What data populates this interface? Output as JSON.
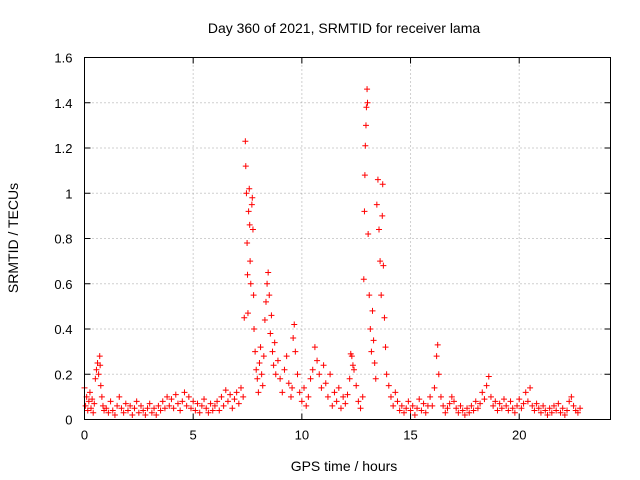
{
  "chart_data": {
    "type": "scatter",
    "title": "Day 360 of 2021, SRMTID for receiver lama",
    "xlabel": "GPS time / hours",
    "ylabel": "SRMTID / TECUs",
    "xlim": [
      0,
      24.2
    ],
    "ylim": [
      0,
      1.6
    ],
    "xticks": [
      0,
      5,
      10,
      15,
      20
    ],
    "xtick_labels": [
      "0",
      "5",
      "10",
      "15",
      "20"
    ],
    "yticks": [
      0,
      0.2,
      0.4,
      0.6,
      0.8,
      1.0,
      1.2,
      1.4,
      1.6
    ],
    "ytick_labels": [
      "0",
      "0.2",
      "0.4",
      "0.6",
      "0.8",
      "1",
      "1.2",
      "1.4",
      "1.6"
    ],
    "grid": true,
    "marker": "+",
    "color": "#ff0000",
    "series": [
      {
        "name": "SRMTID",
        "points": [
          [
            0.0,
            0.14
          ],
          [
            0.05,
            0.06
          ],
          [
            0.1,
            0.1
          ],
          [
            0.15,
            0.04
          ],
          [
            0.2,
            0.08
          ],
          [
            0.25,
            0.12
          ],
          [
            0.3,
            0.05
          ],
          [
            0.35,
            0.09
          ],
          [
            0.4,
            0.03
          ],
          [
            0.45,
            0.07
          ],
          [
            0.5,
            0.18
          ],
          [
            0.55,
            0.22
          ],
          [
            0.6,
            0.25
          ],
          [
            0.65,
            0.2
          ],
          [
            0.7,
            0.28
          ],
          [
            0.72,
            0.24
          ],
          [
            0.75,
            0.15
          ],
          [
            0.8,
            0.1
          ],
          [
            0.85,
            0.06
          ],
          [
            0.9,
            0.04
          ],
          [
            1.0,
            0.05
          ],
          [
            1.1,
            0.03
          ],
          [
            1.2,
            0.08
          ],
          [
            1.3,
            0.04
          ],
          [
            1.4,
            0.02
          ],
          [
            1.5,
            0.06
          ],
          [
            1.6,
            0.1
          ],
          [
            1.7,
            0.05
          ],
          [
            1.8,
            0.03
          ],
          [
            1.9,
            0.07
          ],
          [
            2.0,
            0.04
          ],
          [
            2.1,
            0.06
          ],
          [
            2.2,
            0.02
          ],
          [
            2.3,
            0.05
          ],
          [
            2.4,
            0.08
          ],
          [
            2.5,
            0.03
          ],
          [
            2.6,
            0.06
          ],
          [
            2.7,
            0.04
          ],
          [
            2.8,
            0.02
          ],
          [
            2.9,
            0.05
          ],
          [
            3.0,
            0.07
          ],
          [
            3.1,
            0.03
          ],
          [
            3.2,
            0.05
          ],
          [
            3.3,
            0.02
          ],
          [
            3.4,
            0.06
          ],
          [
            3.5,
            0.04
          ],
          [
            3.6,
            0.08
          ],
          [
            3.7,
            0.05
          ],
          [
            3.8,
            0.1
          ],
          [
            3.9,
            0.06
          ],
          [
            4.0,
            0.09
          ],
          [
            4.1,
            0.05
          ],
          [
            4.2,
            0.11
          ],
          [
            4.3,
            0.07
          ],
          [
            4.4,
            0.04
          ],
          [
            4.5,
            0.08
          ],
          [
            4.6,
            0.12
          ],
          [
            4.7,
            0.06
          ],
          [
            4.8,
            0.1
          ],
          [
            4.9,
            0.05
          ],
          [
            5.0,
            0.08
          ],
          [
            5.1,
            0.04
          ],
          [
            5.2,
            0.07
          ],
          [
            5.3,
            0.03
          ],
          [
            5.4,
            0.06
          ],
          [
            5.5,
            0.09
          ],
          [
            5.6,
            0.05
          ],
          [
            5.7,
            0.03
          ],
          [
            5.8,
            0.07
          ],
          [
            5.9,
            0.04
          ],
          [
            6.0,
            0.06
          ],
          [
            6.1,
            0.08
          ],
          [
            6.2,
            0.04
          ],
          [
            6.3,
            0.1
          ],
          [
            6.4,
            0.06
          ],
          [
            6.5,
            0.13
          ],
          [
            6.6,
            0.08
          ],
          [
            6.7,
            0.11
          ],
          [
            6.8,
            0.05
          ],
          [
            6.9,
            0.09
          ],
          [
            7.0,
            0.12
          ],
          [
            7.1,
            0.07
          ],
          [
            7.2,
            0.14
          ],
          [
            7.3,
            0.1
          ],
          [
            7.35,
            0.45
          ],
          [
            7.4,
            1.23
          ],
          [
            7.42,
            1.12
          ],
          [
            7.45,
            1.0
          ],
          [
            7.48,
            0.78
          ],
          [
            7.5,
            0.64
          ],
          [
            7.52,
            0.47
          ],
          [
            7.55,
            0.92
          ],
          [
            7.58,
            1.02
          ],
          [
            7.6,
            0.86
          ],
          [
            7.62,
            0.7
          ],
          [
            7.65,
            0.6
          ],
          [
            7.7,
            0.95
          ],
          [
            7.72,
            0.98
          ],
          [
            7.75,
            0.84
          ],
          [
            7.78,
            0.55
          ],
          [
            7.8,
            0.4
          ],
          [
            7.85,
            0.3
          ],
          [
            7.9,
            0.22
          ],
          [
            7.95,
            0.18
          ],
          [
            8.0,
            0.12
          ],
          [
            8.05,
            0.25
          ],
          [
            8.1,
            0.32
          ],
          [
            8.15,
            0.2
          ],
          [
            8.2,
            0.15
          ],
          [
            8.25,
            0.28
          ],
          [
            8.3,
            0.44
          ],
          [
            8.35,
            0.52
          ],
          [
            8.4,
            0.6
          ],
          [
            8.45,
            0.65
          ],
          [
            8.5,
            0.55
          ],
          [
            8.55,
            0.38
          ],
          [
            8.6,
            0.46
          ],
          [
            8.65,
            0.3
          ],
          [
            8.7,
            0.24
          ],
          [
            8.75,
            0.34
          ],
          [
            8.8,
            0.2
          ],
          [
            8.9,
            0.26
          ],
          [
            9.0,
            0.18
          ],
          [
            9.1,
            0.12
          ],
          [
            9.2,
            0.22
          ],
          [
            9.3,
            0.28
          ],
          [
            9.4,
            0.16
          ],
          [
            9.5,
            0.1
          ],
          [
            9.55,
            0.14
          ],
          [
            9.6,
            0.36
          ],
          [
            9.65,
            0.42
          ],
          [
            9.7,
            0.3
          ],
          [
            9.8,
            0.2
          ],
          [
            9.9,
            0.12
          ],
          [
            10.0,
            0.08
          ],
          [
            10.1,
            0.14
          ],
          [
            10.2,
            0.06
          ],
          [
            10.3,
            0.1
          ],
          [
            10.4,
            0.18
          ],
          [
            10.5,
            0.22
          ],
          [
            10.6,
            0.32
          ],
          [
            10.7,
            0.26
          ],
          [
            10.8,
            0.2
          ],
          [
            10.9,
            0.14
          ],
          [
            11.0,
            0.24
          ],
          [
            11.1,
            0.16
          ],
          [
            11.2,
            0.1
          ],
          [
            11.3,
            0.2
          ],
          [
            11.4,
            0.06
          ],
          [
            11.5,
            0.12
          ],
          [
            11.6,
            0.08
          ],
          [
            11.7,
            0.14
          ],
          [
            11.8,
            0.05
          ],
          [
            11.9,
            0.1
          ],
          [
            12.0,
            0.07
          ],
          [
            12.1,
            0.11
          ],
          [
            12.2,
            0.18
          ],
          [
            12.25,
            0.29
          ],
          [
            12.3,
            0.28
          ],
          [
            12.35,
            0.24
          ],
          [
            12.4,
            0.22
          ],
          [
            12.5,
            0.15
          ],
          [
            12.6,
            0.08
          ],
          [
            12.7,
            0.05
          ],
          [
            12.8,
            0.1
          ],
          [
            12.85,
            0.62
          ],
          [
            12.88,
            0.92
          ],
          [
            12.9,
            1.08
          ],
          [
            12.92,
            1.21
          ],
          [
            12.95,
            1.3
          ],
          [
            12.97,
            1.38
          ],
          [
            13.0,
            1.46
          ],
          [
            13.02,
            1.4
          ],
          [
            13.05,
            0.82
          ],
          [
            13.1,
            0.55
          ],
          [
            13.15,
            0.4
          ],
          [
            13.2,
            0.3
          ],
          [
            13.25,
            0.48
          ],
          [
            13.3,
            0.35
          ],
          [
            13.35,
            0.25
          ],
          [
            13.4,
            0.18
          ],
          [
            13.45,
            0.95
          ],
          [
            13.5,
            1.06
          ],
          [
            13.55,
            0.84
          ],
          [
            13.6,
            0.7
          ],
          [
            13.65,
            0.55
          ],
          [
            13.7,
            0.9
          ],
          [
            13.72,
            1.04
          ],
          [
            13.75,
            0.68
          ],
          [
            13.8,
            0.45
          ],
          [
            13.85,
            0.32
          ],
          [
            13.9,
            0.2
          ],
          [
            14.0,
            0.15
          ],
          [
            14.1,
            0.1
          ],
          [
            14.2,
            0.06
          ],
          [
            14.3,
            0.12
          ],
          [
            14.4,
            0.08
          ],
          [
            14.5,
            0.04
          ],
          [
            14.6,
            0.06
          ],
          [
            14.7,
            0.03
          ],
          [
            14.8,
            0.05
          ],
          [
            14.9,
            0.08
          ],
          [
            15.0,
            0.04
          ],
          [
            15.1,
            0.06
          ],
          [
            15.2,
            0.02
          ],
          [
            15.3,
            0.05
          ],
          [
            15.4,
            0.09
          ],
          [
            15.5,
            0.04
          ],
          [
            15.6,
            0.07
          ],
          [
            15.7,
            0.03
          ],
          [
            15.8,
            0.06
          ],
          [
            15.9,
            0.1
          ],
          [
            16.0,
            0.06
          ],
          [
            16.1,
            0.14
          ],
          [
            16.2,
            0.28
          ],
          [
            16.25,
            0.33
          ],
          [
            16.3,
            0.2
          ],
          [
            16.4,
            0.1
          ],
          [
            16.5,
            0.06
          ],
          [
            16.6,
            0.03
          ],
          [
            16.7,
            0.05
          ],
          [
            16.8,
            0.07
          ],
          [
            16.9,
            0.1
          ],
          [
            17.0,
            0.08
          ],
          [
            17.1,
            0.05
          ],
          [
            17.2,
            0.03
          ],
          [
            17.3,
            0.06
          ],
          [
            17.4,
            0.04
          ],
          [
            17.5,
            0.02
          ],
          [
            17.6,
            0.05
          ],
          [
            17.7,
            0.03
          ],
          [
            17.8,
            0.06
          ],
          [
            17.9,
            0.04
          ],
          [
            18.0,
            0.08
          ],
          [
            18.1,
            0.05
          ],
          [
            18.2,
            0.07
          ],
          [
            18.3,
            0.12
          ],
          [
            18.4,
            0.09
          ],
          [
            18.5,
            0.15
          ],
          [
            18.6,
            0.19
          ],
          [
            18.7,
            0.1
          ],
          [
            18.8,
            0.06
          ],
          [
            18.9,
            0.08
          ],
          [
            19.0,
            0.04
          ],
          [
            19.1,
            0.07
          ],
          [
            19.2,
            0.05
          ],
          [
            19.3,
            0.09
          ],
          [
            19.4,
            0.06
          ],
          [
            19.5,
            0.04
          ],
          [
            19.6,
            0.08
          ],
          [
            19.7,
            0.05
          ],
          [
            19.8,
            0.03
          ],
          [
            19.9,
            0.06
          ],
          [
            20.0,
            0.09
          ],
          [
            20.1,
            0.05
          ],
          [
            20.2,
            0.07
          ],
          [
            20.3,
            0.12
          ],
          [
            20.4,
            0.08
          ],
          [
            20.5,
            0.14
          ],
          [
            20.6,
            0.06
          ],
          [
            20.7,
            0.04
          ],
          [
            20.8,
            0.07
          ],
          [
            20.9,
            0.05
          ],
          [
            21.0,
            0.03
          ],
          [
            21.1,
            0.06
          ],
          [
            21.2,
            0.04
          ],
          [
            21.3,
            0.02
          ],
          [
            21.4,
            0.05
          ],
          [
            21.5,
            0.03
          ],
          [
            21.6,
            0.06
          ],
          [
            21.7,
            0.04
          ],
          [
            21.8,
            0.07
          ],
          [
            21.9,
            0.03
          ],
          [
            22.0,
            0.05
          ],
          [
            22.1,
            0.02
          ],
          [
            22.2,
            0.04
          ],
          [
            22.3,
            0.08
          ],
          [
            22.4,
            0.1
          ],
          [
            22.5,
            0.06
          ],
          [
            22.6,
            0.04
          ],
          [
            22.7,
            0.03
          ],
          [
            22.8,
            0.05
          ]
        ]
      }
    ]
  }
}
